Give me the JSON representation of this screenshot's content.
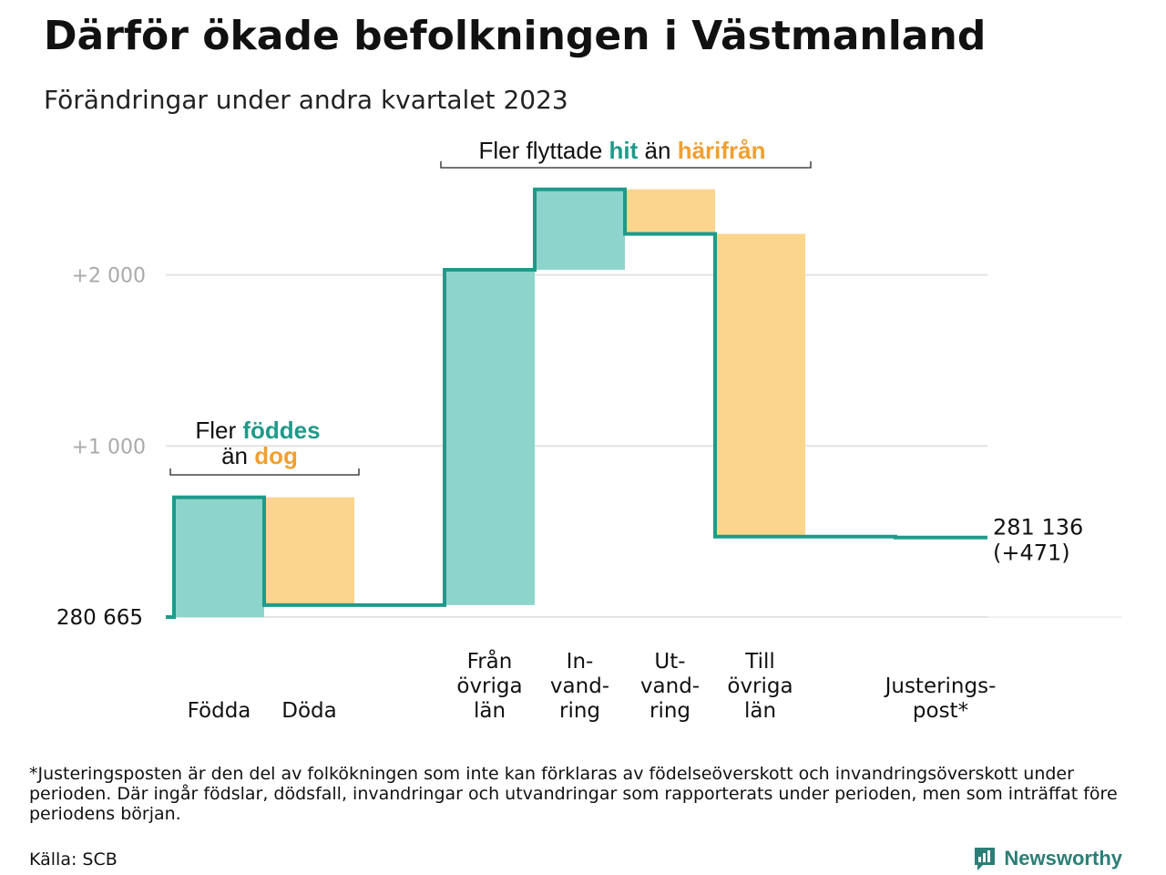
{
  "title": "Därför ökade befolkningen i Västmanland",
  "subtitle": "Förändringar under andra kvartalet 2023",
  "footnote": "*Justeringsposten är den del av folkökningen som inte kan förklaras av födelseöverskott och invandringsöverskott under perioden. Där ingår födslar, dödsfall, invandringar och utvandringar som rapporterats under perioden, men som inträffat före periodens början.",
  "source": "Källa: SCB",
  "brand": "Newsworthy",
  "icons": {
    "brand_logo": "newsworthy-logo-icon"
  },
  "colors": {
    "increase": "#8dd5cc",
    "decrease": "#fad58b",
    "line": "#1f9a8a",
    "hit_text": "#1f9a8a",
    "away_text": "#f0a030"
  },
  "annotations": {
    "births": {
      "line1_plain": "Fler ",
      "line1_bold": "föddes",
      "line2_plain": "än ",
      "line2_bold": "dog"
    },
    "migration": {
      "plain1": "Fler flyttade ",
      "bold1": "hit",
      "plain2": " än ",
      "bold2": "härifrån"
    }
  },
  "chart_data": {
    "type": "waterfall",
    "title": "Därför ökade befolkningen i Västmanland",
    "subtitle": "Förändringar under andra kvartalet 2023",
    "start_value": 280665,
    "start_label": "280 665",
    "end_value": 281136,
    "end_label": "281 136",
    "end_change_label": "(+471)",
    "y_ticks": [
      {
        "value": 1000,
        "label": "+1 000"
      },
      {
        "value": 2000,
        "label": "+2 000"
      }
    ],
    "ylim": [
      0,
      2550
    ],
    "grid": true,
    "steps": [
      {
        "category": "Födda",
        "change": 700,
        "direction": "increase",
        "gap_before": false
      },
      {
        "category": "Döda",
        "change": -630,
        "direction": "decrease",
        "gap_before": false
      },
      {
        "category": "Från övriga län",
        "change": 1960,
        "direction": "increase",
        "gap_before": true
      },
      {
        "category": "In-vand-ring",
        "change": 470,
        "direction": "increase",
        "gap_before": false
      },
      {
        "category": "Ut-vand-ring",
        "change": -260,
        "direction": "decrease",
        "gap_before": false
      },
      {
        "category": "Till övriga län",
        "change": -1770,
        "direction": "decrease",
        "gap_before": false
      },
      {
        "category": "Justerings-post*",
        "change": -5,
        "direction": "decrease",
        "gap_before": true
      }
    ],
    "category_labels": [
      [
        "Födda"
      ],
      [
        "Döda"
      ],
      [
        "Från",
        "övriga",
        "län"
      ],
      [
        "In-",
        "vand-",
        "ring"
      ],
      [
        "Ut-",
        "vand-",
        "ring"
      ],
      [
        "Till",
        "övriga",
        "län"
      ],
      [
        "Justerings-",
        "post*"
      ]
    ]
  }
}
